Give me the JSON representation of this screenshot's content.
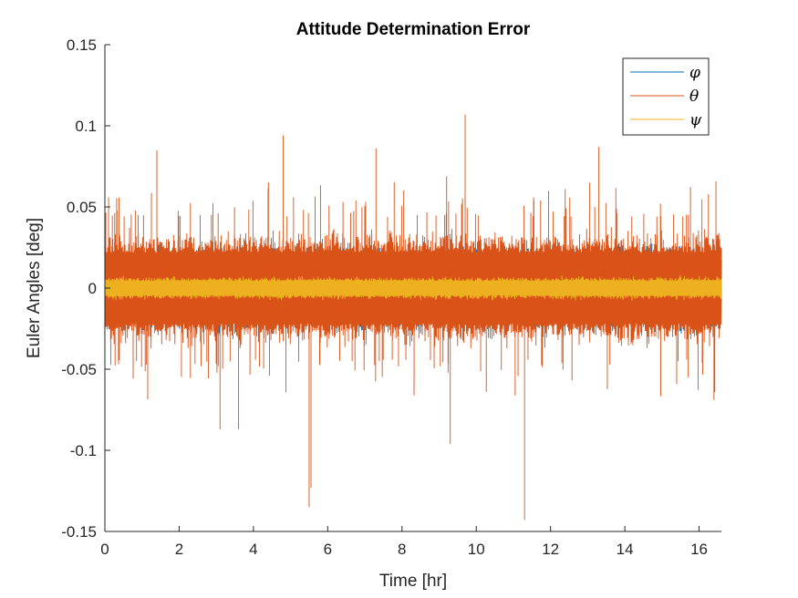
{
  "chart_data": {
    "type": "line",
    "title": "Attitude Determination Error",
    "xlabel": "Time [hr]",
    "ylabel": "Euler Angles [deg]",
    "xlim": [
      0,
      16.6
    ],
    "ylim": [
      -0.15,
      0.15
    ],
    "xticks": [
      "0",
      "2",
      "4",
      "6",
      "8",
      "10",
      "12",
      "14",
      "16"
    ],
    "xtick_values": [
      0,
      2,
      4,
      6,
      8,
      10,
      12,
      14,
      16
    ],
    "yticks": [
      "0.15",
      "0.1",
      "0.05",
      "0",
      "-0.05",
      "-0.1",
      "-0.15"
    ],
    "ytick_values": [
      0.15,
      0.1,
      0.05,
      0,
      -0.05,
      -0.1,
      -0.15
    ],
    "grid": false,
    "legend_position": "top-right",
    "series": [
      {
        "name": "φ",
        "color": "#0072BD",
        "noise_band": [
          -0.03,
          0.03
        ]
      },
      {
        "name": "θ",
        "color": "#D95319",
        "noise_band": [
          -0.04,
          0.04
        ],
        "notable_spikes": [
          {
            "x": 0.1,
            "y": 0.056
          },
          {
            "x": 1.4,
            "y": 0.085
          },
          {
            "x": 3.1,
            "y": -0.087
          },
          {
            "x": 3.6,
            "y": -0.087
          },
          {
            "x": 4.8,
            "y": 0.094
          },
          {
            "x": 5.5,
            "y": -0.135
          },
          {
            "x": 5.55,
            "y": -0.123
          },
          {
            "x": 7.3,
            "y": 0.086
          },
          {
            "x": 9.3,
            "y": -0.096
          },
          {
            "x": 9.7,
            "y": 0.107
          },
          {
            "x": 11.3,
            "y": -0.143
          },
          {
            "x": 13.3,
            "y": 0.087
          },
          {
            "x": 16.4,
            "y": -0.069
          }
        ]
      },
      {
        "name": "ψ",
        "color": "#EDB120",
        "noise_band": [
          -0.008,
          0.008
        ]
      }
    ]
  }
}
